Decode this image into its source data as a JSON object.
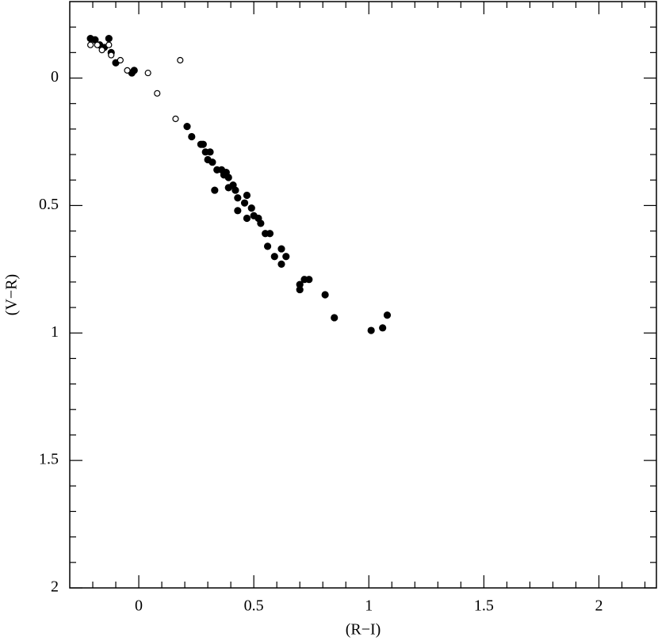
{
  "chart_data": {
    "type": "scatter",
    "x_label": "(R−I)",
    "y_label": "(V−R)",
    "xlim": [
      -0.3,
      2.25
    ],
    "ylim": [
      -0.3,
      2
    ],
    "y_inverted": true,
    "xticks": [
      0,
      0.5,
      1,
      1.5,
      2
    ],
    "yticks": [
      0,
      0.5,
      1,
      1.5,
      2
    ],
    "xminorticks": [
      -0.2,
      -0.1,
      0.1,
      0.2,
      0.3,
      0.4,
      0.6,
      0.7,
      0.8,
      0.9,
      1.1,
      1.2,
      1.3,
      1.4,
      1.6,
      1.7,
      1.8,
      1.9,
      2.1,
      2.2
    ],
    "yminorticks": [
      -0.2,
      -0.1,
      0.1,
      0.2,
      0.3,
      0.4,
      0.6,
      0.7,
      0.8,
      0.9,
      1.1,
      1.2,
      1.3,
      1.4,
      1.6,
      1.7,
      1.8,
      1.9
    ],
    "series": [
      {
        "color": "#000000",
        "filled": true,
        "x": [
          -0.21,
          -0.19,
          -0.17,
          -0.13,
          -0.15,
          -0.12,
          -0.1,
          -0.03,
          -0.02,
          0.21,
          0.23,
          0.27,
          0.29,
          0.31,
          0.3,
          0.32,
          0.33,
          0.34,
          0.36,
          0.37,
          0.39,
          0.39,
          0.41,
          0.42,
          0.43,
          0.43,
          0.46,
          0.47,
          0.47,
          0.49,
          0.5,
          0.52,
          0.53,
          0.55,
          0.57,
          0.56,
          0.59,
          0.62,
          0.62,
          0.64,
          0.7,
          0.7,
          0.72,
          0.74,
          0.81,
          0.85,
          1.01,
          1.06,
          1.08,
          0.28,
          0.38
        ],
        "y": [
          -0.155,
          -0.15,
          -0.13,
          -0.155,
          -0.12,
          -0.1,
          -0.06,
          -0.02,
          -0.03,
          0.19,
          0.23,
          0.26,
          0.29,
          0.29,
          0.32,
          0.33,
          0.44,
          0.36,
          0.36,
          0.38,
          0.39,
          0.43,
          0.42,
          0.44,
          0.47,
          0.52,
          0.49,
          0.46,
          0.55,
          0.51,
          0.54,
          0.55,
          0.57,
          0.61,
          0.61,
          0.66,
          0.7,
          0.67,
          0.73,
          0.7,
          0.81,
          0.83,
          0.79,
          0.79,
          0.85,
          0.94,
          0.99,
          0.98,
          0.93,
          0.26,
          0.37
        ]
      },
      {
        "color": "#000000",
        "filled": false,
        "x": [
          -0.21,
          -0.18,
          -0.16,
          -0.13,
          -0.12,
          -0.08,
          -0.05,
          0.04,
          0.18,
          0.08,
          0.16
        ],
        "y": [
          -0.13,
          -0.13,
          -0.11,
          -0.13,
          -0.09,
          -0.07,
          -0.03,
          -0.02,
          -0.07,
          0.06,
          0.16
        ]
      }
    ]
  }
}
